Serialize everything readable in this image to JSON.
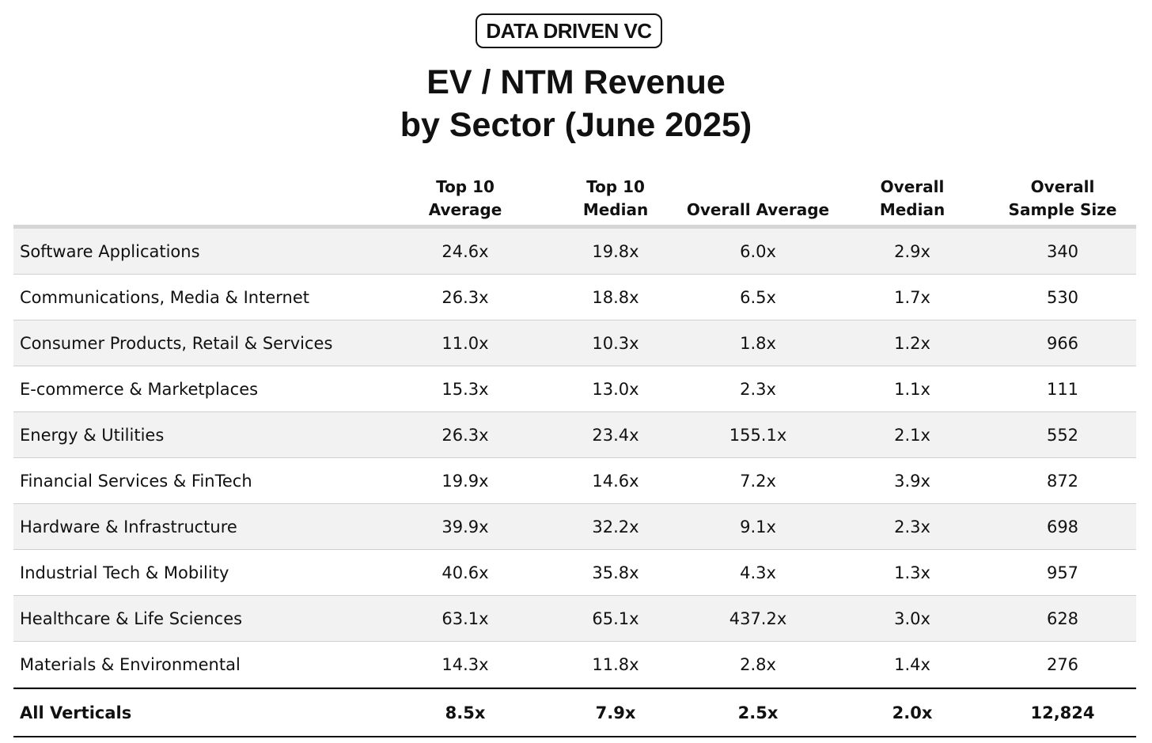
{
  "logo": {
    "text": "DATA DRIVEN VC"
  },
  "chart_data": {
    "type": "table",
    "title": "EV / NTM Revenue",
    "subtitle": "by Sector (June 2025)",
    "columns": [
      "",
      "Top 10\nAverage",
      "Top 10\nMedian",
      "Overall Average",
      "Overall\nMedian",
      "Overall\nSample Size"
    ],
    "rows": [
      {
        "sector": "Software Applications",
        "values": [
          "24.6x",
          "19.8x",
          "6.0x",
          "2.9x",
          "340"
        ]
      },
      {
        "sector": "Communications, Media & Internet",
        "values": [
          "26.3x",
          "18.8x",
          "6.5x",
          "1.7x",
          "530"
        ]
      },
      {
        "sector": "Consumer Products, Retail & Services",
        "values": [
          "11.0x",
          "10.3x",
          "1.8x",
          "1.2x",
          "966"
        ]
      },
      {
        "sector": "E-commerce & Marketplaces",
        "values": [
          "15.3x",
          "13.0x",
          "2.3x",
          "1.1x",
          "111"
        ]
      },
      {
        "sector": "Energy & Utilities",
        "values": [
          "26.3x",
          "23.4x",
          "155.1x",
          "2.1x",
          "552"
        ]
      },
      {
        "sector": "Financial Services & FinTech",
        "values": [
          "19.9x",
          "14.6x",
          "7.2x",
          "3.9x",
          "872"
        ]
      },
      {
        "sector": "Hardware & Infrastructure",
        "values": [
          "39.9x",
          "32.2x",
          "9.1x",
          "2.3x",
          "698"
        ]
      },
      {
        "sector": "Industrial Tech & Mobility",
        "values": [
          "40.6x",
          "35.8x",
          "4.3x",
          "1.3x",
          "957"
        ]
      },
      {
        "sector": "Healthcare & Life Sciences",
        "values": [
          "63.1x",
          "65.1x",
          "437.2x",
          "3.0x",
          "628"
        ]
      },
      {
        "sector": "Materials & Environmental",
        "values": [
          "14.3x",
          "11.8x",
          "2.8x",
          "1.4x",
          "276"
        ]
      }
    ],
    "total": {
      "sector": "All Verticals",
      "values": [
        "8.5x",
        "7.9x",
        "2.5x",
        "2.0x",
        "12,824"
      ]
    }
  },
  "colors": {
    "text": "#111111",
    "row_alt": "#f2f2f2",
    "header_rule": "#d6d6d6",
    "row_rule": "#cfcfcf"
  }
}
